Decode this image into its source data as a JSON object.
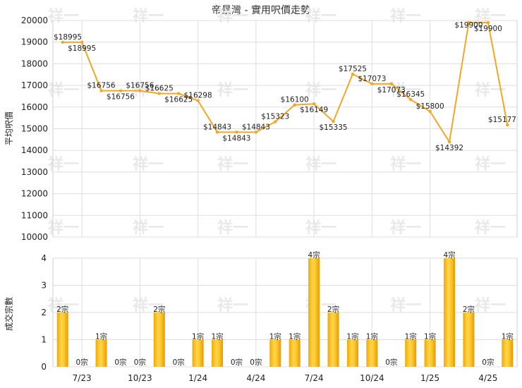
{
  "chart_data": [
    {
      "type": "line",
      "title": "帝景灣 - 實用呎價走勢",
      "ylabel": "平均呎價",
      "ylim": [
        10000,
        20000
      ],
      "yticks": [
        10000,
        11000,
        12000,
        13000,
        14000,
        15000,
        16000,
        17000,
        18000,
        19000,
        20000
      ],
      "grid": true,
      "color": "#f5a623",
      "values": [
        18995,
        18995,
        16756,
        16756,
        16756,
        16625,
        16625,
        16298,
        14843,
        14843,
        14843,
        15323,
        16100,
        16149,
        15335,
        17525,
        17073,
        17073,
        16345,
        15800,
        14392,
        19900,
        19900,
        15177
      ],
      "labels": [
        "$18995",
        "$18995",
        "$16756",
        "$16756",
        "$16756",
        "$16625",
        "$16625",
        "$16298",
        "$14843",
        "$14843",
        "$14843",
        "$15323",
        "$16100",
        "$16149",
        "$15335",
        "$17525",
        "$17073",
        "$17073",
        "$16345",
        "$15800",
        "$14392",
        "$19900",
        "$19900",
        "$15177"
      ]
    },
    {
      "type": "bar",
      "ylabel": "成交宗數",
      "ylim": [
        0,
        4
      ],
      "yticks": [
        0,
        1,
        2,
        3,
        4
      ],
      "grid": true,
      "x_tick_labels": [
        "7/23",
        "10/23",
        "1/24",
        "4/24",
        "7/24",
        "10/24",
        "1/25",
        "4/25"
      ],
      "values": [
        2,
        0,
        1,
        0,
        0,
        2,
        0,
        1,
        1,
        0,
        0,
        1,
        1,
        4,
        2,
        1,
        1,
        0,
        1,
        1,
        4,
        2,
        0,
        1
      ],
      "labels": [
        "2宗",
        "0宗",
        "1宗",
        "0宗",
        "0宗",
        "2宗",
        "0宗",
        "1宗",
        "1宗",
        "0宗",
        "0宗",
        "1宗",
        "1宗",
        "4宗",
        "2宗",
        "1宗",
        "1宗",
        "0宗",
        "1宗",
        "1宗",
        "4宗",
        "2宗",
        "0宗",
        "1宗"
      ]
    }
  ],
  "watermark": "祥一"
}
